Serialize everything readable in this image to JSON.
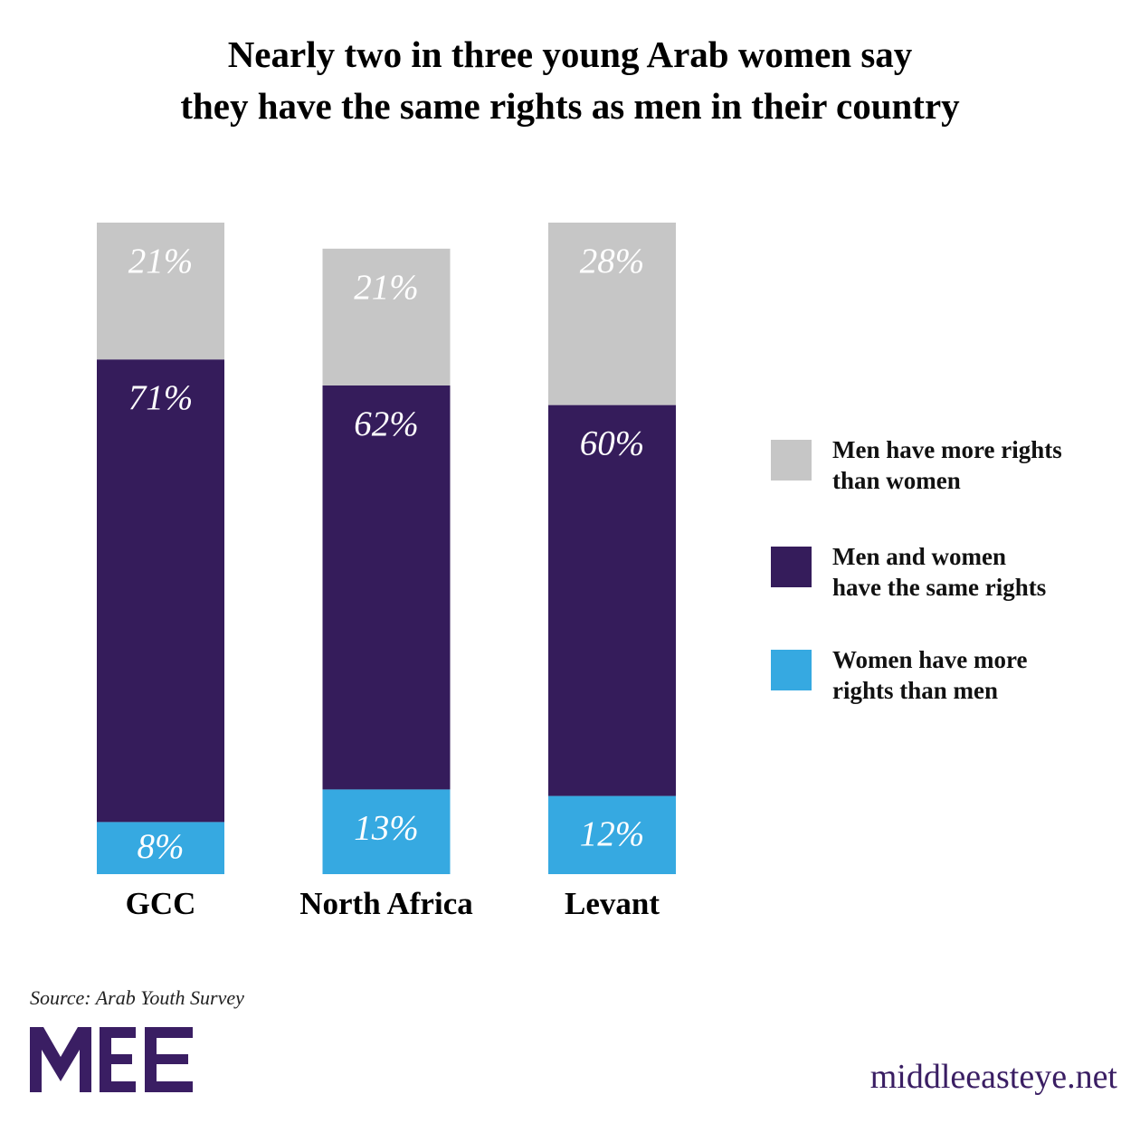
{
  "chart_data": {
    "type": "stacked-bar",
    "title": "Nearly two in three young Arab women say\nthey have the same rights as men in their country",
    "categories": [
      "GCC",
      "North Africa",
      "Levant"
    ],
    "series": [
      {
        "name": "Men have more rights\nthan women",
        "color": "#c6c6c6",
        "values": [
          21,
          21,
          28
        ],
        "value_labels": [
          "21%",
          "21%",
          "28%"
        ]
      },
      {
        "name": "Men and women\nhave the same rights",
        "color": "#351c5b",
        "values": [
          71,
          62,
          60
        ],
        "value_labels": [
          "71%",
          "62%",
          "60%"
        ]
      },
      {
        "name": "Women have more\nrights than men",
        "color": "#36a9e1",
        "values": [
          8,
          13,
          12
        ],
        "value_labels": [
          "8%",
          "13%",
          "12%"
        ]
      }
    ],
    "source": "Source: Arab Youth Survey",
    "website": "middleeasteye.net"
  }
}
